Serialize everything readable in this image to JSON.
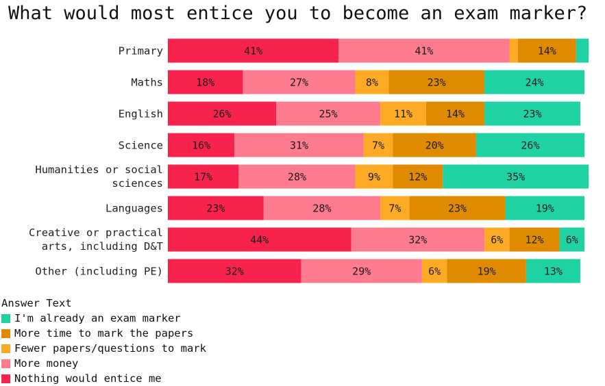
{
  "chart_data": {
    "type": "bar",
    "orientation": "horizontal",
    "stacked": "percent",
    "title": "What would most entice you to become an exam marker?",
    "legend_title": "Answer Text",
    "legend_position": "bottom-left",
    "grid": false,
    "xlim": [
      0,
      100
    ],
    "categories": [
      [
        "Primary"
      ],
      [
        "Maths"
      ],
      [
        "English"
      ],
      [
        "Science"
      ],
      [
        "Humanities or social",
        "sciences"
      ],
      [
        "Languages"
      ],
      [
        "Creative or practical",
        "arts, including D&T"
      ],
      [
        "Other (including PE)"
      ]
    ],
    "series": [
      {
        "name": "Nothing would entice me",
        "color": "#f7234c",
        "values": [
          41,
          18,
          26,
          16,
          17,
          23,
          44,
          32
        ]
      },
      {
        "name": "More money",
        "color": "#fd7b8e",
        "values": [
          41,
          27,
          25,
          31,
          28,
          28,
          32,
          29
        ]
      },
      {
        "name": "Fewer papers/questions to mark",
        "color": "#fdab25",
        "values": [
          2,
          8,
          11,
          7,
          9,
          7,
          6,
          6
        ]
      },
      {
        "name": "More time to mark the papers",
        "color": "#e08a00",
        "values": [
          14,
          23,
          14,
          20,
          12,
          23,
          12,
          19
        ]
      },
      {
        "name": "I'm already an exam marker",
        "color": "#1ed2a4",
        "values": [
          3,
          24,
          23,
          26,
          35,
          19,
          6,
          13
        ]
      }
    ],
    "data_labels": [
      [
        "41%",
        "41%",
        "",
        "14%",
        ""
      ],
      [
        "18%",
        "27%",
        "8%",
        "23%",
        "24%"
      ],
      [
        "26%",
        "25%",
        "11%",
        "14%",
        "23%"
      ],
      [
        "16%",
        "31%",
        "7%",
        "20%",
        "26%"
      ],
      [
        "17%",
        "28%",
        "9%",
        "12%",
        "35%"
      ],
      [
        "23%",
        "28%",
        "7%",
        "23%",
        "19%"
      ],
      [
        "44%",
        "32%",
        "6%",
        "12%",
        "6%"
      ],
      [
        "32%",
        "29%",
        "6%",
        "19%",
        "13%"
      ]
    ],
    "legend_order": [
      4,
      3,
      2,
      1,
      0
    ]
  }
}
